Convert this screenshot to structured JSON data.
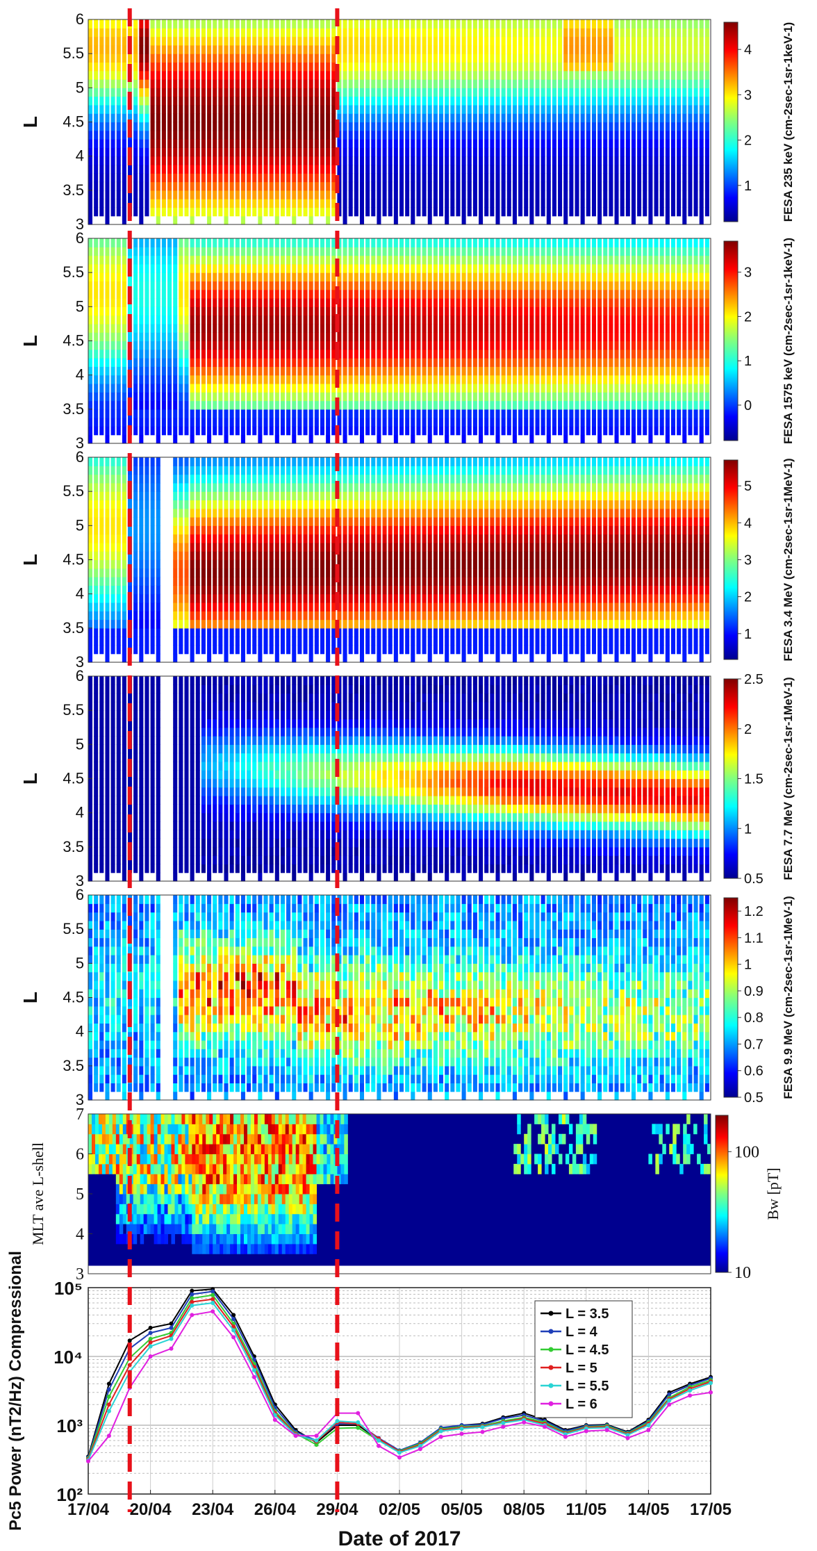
{
  "figure": {
    "xlabel": "Date of 2017",
    "date_ticks": [
      "17/04",
      "20/04",
      "23/04",
      "26/04",
      "29/04",
      "02/05",
      "05/05",
      "08/05",
      "11/05",
      "14/05",
      "17/05"
    ],
    "event_markers": [
      "19/04",
      "29/04"
    ],
    "marker_color": "#e8111a"
  },
  "chart_data": [
    {
      "type": "heatmap",
      "ylabel": "L",
      "ylim": [
        3,
        6
      ],
      "yticks": [
        "3",
        "3.5",
        "4",
        "4.5",
        "5",
        "5.5",
        "6"
      ],
      "colorbar_label": "FESA 235 keV (cm-2sec-1sr-1keV-1)",
      "colorbar_ticks": [
        "1",
        "2",
        "3",
        "4"
      ],
      "clim": [
        0.2,
        4.6
      ],
      "colormap": "jet"
    },
    {
      "type": "heatmap",
      "ylabel": "L",
      "ylim": [
        3,
        6
      ],
      "yticks": [
        "3",
        "3.5",
        "4",
        "4.5",
        "5",
        "5.5",
        "6"
      ],
      "colorbar_label": "FESA 1575 keV (cm-2sec-1sr-1keV-1)",
      "colorbar_ticks": [
        "0",
        "1",
        "2",
        "3"
      ],
      "clim": [
        -0.8,
        3.7
      ],
      "colormap": "jet"
    },
    {
      "type": "heatmap",
      "ylabel": "L",
      "ylim": [
        3,
        6
      ],
      "yticks": [
        "3",
        "3.5",
        "4",
        "4.5",
        "5",
        "5.5",
        "6"
      ],
      "colorbar_label": "FESA 3.4 MeV (cm-2sec-1sr-1MeV-1)",
      "colorbar_ticks": [
        "1",
        "2",
        "3",
        "4",
        "5"
      ],
      "clim": [
        0.3,
        5.7
      ],
      "colormap": "jet"
    },
    {
      "type": "heatmap",
      "ylabel": "L",
      "ylim": [
        3,
        6
      ],
      "yticks": [
        "3",
        "3.5",
        "4",
        "4.5",
        "5",
        "5.5",
        "6"
      ],
      "colorbar_label": "FESA 7.7 MeV (cm-2sec-1sr-1MeV-1)",
      "colorbar_ticks": [
        "0.5",
        "1",
        "1.5",
        "2",
        "2.5"
      ],
      "clim": [
        0.5,
        2.5
      ],
      "colormap": "jet"
    },
    {
      "type": "heatmap",
      "ylabel": "L",
      "ylim": [
        3,
        6
      ],
      "yticks": [
        "3",
        "3.5",
        "4",
        "4.5",
        "5",
        "5.5",
        "6"
      ],
      "colorbar_label": "FESA 9.9 MeV (cm-2sec-1sr-1MeV-1)",
      "colorbar_ticks": [
        "0.5",
        "0.6",
        "0.7",
        "0.8",
        "0.9",
        "1",
        "1.1",
        "1.2"
      ],
      "clim": [
        0.5,
        1.25
      ],
      "colormap": "jet"
    },
    {
      "type": "heatmap",
      "ylabel": "MLT ave L-shell",
      "ylim": [
        3,
        7
      ],
      "yticks": [
        "3",
        "4",
        "5",
        "6",
        "7"
      ],
      "colorbar_label": "Bw [pT]",
      "colorbar_ticks": [
        "10",
        "100"
      ],
      "clim": [
        10,
        200
      ],
      "scale": "log",
      "colormap": "jet"
    },
    {
      "type": "line",
      "ylabel": "Pc5 Power (nT2/Hz) Compressional",
      "ylim": [
        100,
        100000
      ],
      "yscale": "log",
      "yticks": [
        "10²",
        "10³",
        "10⁴",
        "10⁵"
      ],
      "grid": true,
      "legend_position": "top-right",
      "x": [
        0,
        1,
        2,
        3,
        4,
        5,
        6,
        7,
        8,
        9,
        10,
        11,
        12,
        13,
        14,
        15,
        16,
        17,
        18,
        19,
        20,
        21,
        22,
        23,
        24,
        25,
        26,
        27,
        28,
        29,
        30
      ],
      "series": [
        {
          "name": "L = 3.5",
          "color": "#000000",
          "values": [
            350,
            4000,
            17000,
            26000,
            30000,
            90000,
            95000,
            40000,
            10000,
            2000,
            850,
            560,
            1000,
            1000,
            620,
            420,
            550,
            900,
            1000,
            1050,
            1300,
            1500,
            1200,
            850,
            1000,
            1020,
            800,
            1200,
            3000,
            4000,
            5000
          ]
        },
        {
          "name": "L =   4",
          "color": "#1f3fb8",
          "values": [
            340,
            3300,
            13000,
            22000,
            26000,
            80000,
            88000,
            35000,
            9000,
            1800,
            800,
            600,
            1050,
            1050,
            650,
            430,
            560,
            920,
            1000,
            1020,
            1250,
            1400,
            1150,
            820,
            980,
            1000,
            780,
            1150,
            2800,
            3800,
            4800
          ]
        },
        {
          "name": "L = 4.5",
          "color": "#33cc33",
          "values": [
            330,
            2600,
            9500,
            18000,
            22000,
            70000,
            78000,
            30000,
            7800,
            1600,
            760,
            520,
            900,
            920,
            600,
            420,
            540,
            880,
            950,
            980,
            1150,
            1300,
            1100,
            780,
            950,
            980,
            760,
            1100,
            2500,
            3600,
            4500
          ]
        },
        {
          "name": "L =   5",
          "color": "#e02020",
          "values": [
            320,
            2000,
            7500,
            16000,
            20000,
            62000,
            68000,
            27000,
            7000,
            1500,
            740,
            580,
            1100,
            1050,
            640,
            410,
            520,
            850,
            920,
            960,
            1100,
            1250,
            1050,
            760,
            930,
            950,
            740,
            1050,
            2400,
            3400,
            4300
          ]
        },
        {
          "name": "L = 5.5",
          "color": "#2ad4d4",
          "values": [
            310,
            1600,
            6000,
            14000,
            18000,
            55000,
            60000,
            24000,
            6300,
            1400,
            720,
            600,
            1150,
            1100,
            600,
            400,
            500,
            820,
            890,
            940,
            1080,
            1200,
            1000,
            740,
            900,
            920,
            720,
            1000,
            2300,
            3200,
            4100
          ]
        },
        {
          "name": "L =   6",
          "color": "#e020e0",
          "values": [
            300,
            700,
            3500,
            10000,
            13000,
            40000,
            45000,
            19000,
            5000,
            1200,
            700,
            700,
            1500,
            1500,
            500,
            340,
            450,
            680,
            750,
            800,
            950,
            1100,
            950,
            680,
            820,
            850,
            650,
            850,
            2000,
            2700,
            3000
          ]
        }
      ]
    }
  ]
}
